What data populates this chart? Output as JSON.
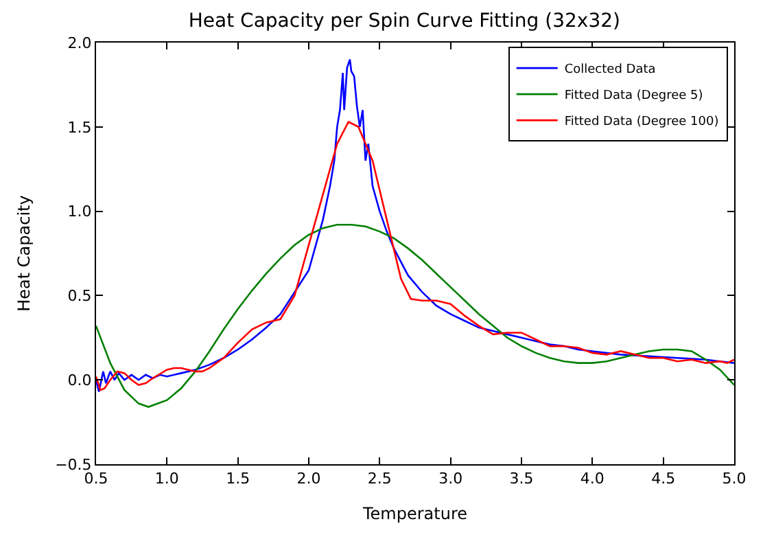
{
  "chart_data": {
    "type": "line",
    "title": "Heat Capacity per Spin Curve Fitting (32x32)",
    "xlabel": "Temperature",
    "ylabel": "Heat Capacity",
    "xlim": [
      0.5,
      5.0
    ],
    "xticks": [
      {
        "value": 0.5,
        "label": "0.5"
      },
      {
        "value": 1,
        "label": "1.0"
      },
      {
        "value": 1.5,
        "label": "1.5"
      },
      {
        "value": 2,
        "label": "2.0"
      },
      {
        "value": 2.5,
        "label": "2.5"
      },
      {
        "value": 3,
        "label": "3.0"
      },
      {
        "value": 3.5,
        "label": "3.5"
      },
      {
        "value": 4,
        "label": "4.0"
      },
      {
        "value": 4.5,
        "label": "4.5"
      },
      {
        "value": 5,
        "label": "5.0"
      }
    ],
    "ylim": [
      -0.5,
      2.0
    ],
    "yticks": [
      {
        "value": -0.5,
        "label": "−0.5"
      },
      {
        "value": 0,
        "label": "0.0"
      },
      {
        "value": 0.5,
        "label": "0.5"
      },
      {
        "value": 1,
        "label": "1.0"
      },
      {
        "value": 1.5,
        "label": "1.5"
      },
      {
        "value": 2,
        "label": "2.0"
      }
    ],
    "legend": "top right",
    "marker": "none",
    "line_style": "solid",
    "series": [
      {
        "name": "Collected Data",
        "color": "#0000ff",
        "x": [
          0.5,
          0.52,
          0.55,
          0.57,
          0.6,
          0.63,
          0.66,
          0.7,
          0.75,
          0.8,
          0.85,
          0.9,
          0.95,
          1.0,
          1.1,
          1.2,
          1.3,
          1.4,
          1.5,
          1.6,
          1.7,
          1.8,
          1.9,
          2.0,
          2.05,
          2.1,
          2.15,
          2.18,
          2.2,
          2.22,
          2.24,
          2.25,
          2.27,
          2.29,
          2.3,
          2.32,
          2.34,
          2.36,
          2.38,
          2.4,
          2.42,
          2.45,
          2.5,
          2.55,
          2.6,
          2.65,
          2.7,
          2.8,
          2.9,
          3.0,
          3.1,
          3.2,
          3.3,
          3.4,
          3.5,
          3.6,
          3.7,
          3.8,
          3.9,
          4.0,
          4.2,
          4.4,
          4.6,
          4.8,
          4.9,
          5.0
        ],
        "values": [
          0.0,
          -0.07,
          0.05,
          -0.02,
          0.05,
          0.0,
          0.04,
          0.0,
          0.03,
          0.0,
          0.03,
          0.01,
          0.03,
          0.02,
          0.04,
          0.06,
          0.09,
          0.13,
          0.18,
          0.24,
          0.31,
          0.39,
          0.52,
          0.65,
          0.8,
          0.95,
          1.15,
          1.3,
          1.5,
          1.6,
          1.82,
          1.6,
          1.85,
          1.9,
          1.83,
          1.8,
          1.62,
          1.5,
          1.6,
          1.3,
          1.4,
          1.15,
          1.0,
          0.88,
          0.78,
          0.7,
          0.62,
          0.52,
          0.44,
          0.39,
          0.35,
          0.31,
          0.29,
          0.27,
          0.25,
          0.23,
          0.21,
          0.2,
          0.18,
          0.17,
          0.15,
          0.14,
          0.13,
          0.12,
          0.11,
          0.1
        ]
      },
      {
        "name": "Fitted Data (Degree 5)",
        "color": "#008000",
        "x": [
          0.5,
          0.6,
          0.7,
          0.8,
          0.87,
          1.0,
          1.1,
          1.2,
          1.3,
          1.4,
          1.5,
          1.6,
          1.7,
          1.8,
          1.9,
          2.0,
          2.1,
          2.2,
          2.3,
          2.4,
          2.5,
          2.6,
          2.7,
          2.8,
          2.9,
          3.0,
          3.1,
          3.2,
          3.3,
          3.4,
          3.5,
          3.6,
          3.7,
          3.8,
          3.9,
          4.0,
          4.1,
          4.2,
          4.3,
          4.4,
          4.5,
          4.6,
          4.7,
          4.8,
          4.9,
          5.0
        ],
        "values": [
          0.32,
          0.1,
          -0.06,
          -0.14,
          -0.16,
          -0.12,
          -0.05,
          0.05,
          0.17,
          0.3,
          0.42,
          0.53,
          0.63,
          0.72,
          0.8,
          0.86,
          0.9,
          0.92,
          0.92,
          0.91,
          0.88,
          0.84,
          0.78,
          0.71,
          0.63,
          0.55,
          0.47,
          0.39,
          0.32,
          0.25,
          0.2,
          0.16,
          0.13,
          0.11,
          0.1,
          0.1,
          0.11,
          0.13,
          0.15,
          0.17,
          0.18,
          0.18,
          0.17,
          0.12,
          0.06,
          -0.03
        ]
      },
      {
        "name": "Fitted Data (Degree 100)",
        "color": "#ff0000",
        "x": [
          0.5,
          0.53,
          0.56,
          0.6,
          0.65,
          0.7,
          0.75,
          0.8,
          0.85,
          0.9,
          1.0,
          1.05,
          1.1,
          1.2,
          1.25,
          1.3,
          1.4,
          1.5,
          1.6,
          1.7,
          1.8,
          1.9,
          2.0,
          2.1,
          2.2,
          2.28,
          2.35,
          2.45,
          2.55,
          2.65,
          2.72,
          2.8,
          2.9,
          3.0,
          3.1,
          3.2,
          3.3,
          3.4,
          3.5,
          3.6,
          3.7,
          3.8,
          3.9,
          4.0,
          4.1,
          4.2,
          4.3,
          4.4,
          4.5,
          4.6,
          4.7,
          4.8,
          4.9,
          4.95,
          5.0
        ],
        "values": [
          0.02,
          -0.06,
          -0.05,
          0.0,
          0.05,
          0.04,
          0.0,
          -0.03,
          -0.02,
          0.01,
          0.06,
          0.07,
          0.07,
          0.05,
          0.05,
          0.07,
          0.13,
          0.22,
          0.3,
          0.34,
          0.36,
          0.5,
          0.8,
          1.1,
          1.4,
          1.53,
          1.5,
          1.3,
          0.95,
          0.6,
          0.48,
          0.47,
          0.47,
          0.45,
          0.38,
          0.32,
          0.27,
          0.28,
          0.28,
          0.24,
          0.2,
          0.2,
          0.19,
          0.16,
          0.15,
          0.17,
          0.15,
          0.13,
          0.13,
          0.11,
          0.12,
          0.1,
          0.11,
          0.1,
          0.12
        ]
      }
    ]
  }
}
